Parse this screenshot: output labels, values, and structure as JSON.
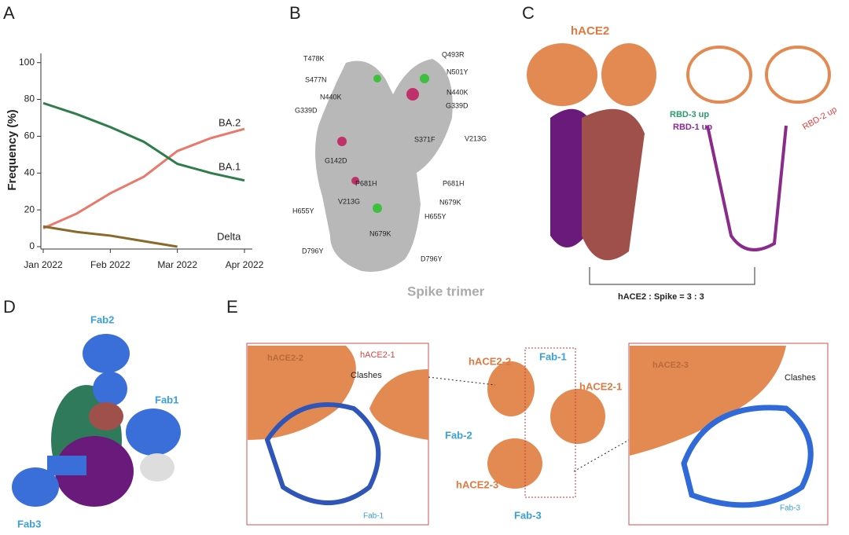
{
  "panels": {
    "letters": [
      "A",
      "B",
      "C",
      "D",
      "E"
    ]
  },
  "chart_data": {
    "type": "line",
    "y_label": "Frequency (%)",
    "x": [
      0,
      0.5,
      1,
      1.5,
      2,
      2.5,
      3
    ],
    "xlim": [
      0,
      3
    ],
    "xticks": [
      {
        "value": 0,
        "label": "Jan 2022"
      },
      {
        "value": 1,
        "label": "Feb 2022"
      },
      {
        "value": 2,
        "label": "Mar 2022"
      },
      {
        "value": 3,
        "label": "Apr 2022"
      }
    ],
    "ylim": [
      0,
      105
    ],
    "yticks": [
      0,
      20,
      40,
      60,
      80,
      100
    ],
    "series": [
      {
        "name": "BA.2",
        "color": "#e8796b",
        "values": [
          10,
          18,
          29,
          38,
          52,
          59,
          64
        ]
      },
      {
        "name": "BA.1",
        "color": "#2e7d4a",
        "values": [
          78,
          72,
          65,
          57,
          45,
          40,
          36
        ]
      },
      {
        "name": "Delta",
        "color": "#8a6a2a",
        "values": [
          11,
          8,
          6,
          3,
          0,
          null,
          null
        ]
      }
    ]
  },
  "panel_b": {
    "caption": "Spike trimer",
    "labels": [
      "T478K",
      "S477N",
      "N440K",
      "G339D",
      "G142D",
      "V213G",
      "P681H",
      "H655Y",
      "N679K",
      "D796Y",
      "Q493R",
      "N501Y",
      "N440K",
      "G339D",
      "S371F",
      "V213G",
      "P681H",
      "N679K",
      "H655Y",
      "D796Y"
    ]
  },
  "panel_c": {
    "hace2": "hACE2",
    "rbd3": "RBD-3 up",
    "rbd1": "RBD-1 up",
    "rbd2": "RBD-2 up",
    "ratio": "hACE2 : Spike = 3 : 3"
  },
  "panel_d": {
    "fab2": "Fab2",
    "fab1": "Fab1",
    "fab3": "Fab3"
  },
  "panel_e": {
    "left": [
      "hACE2-2",
      "hACE2-1",
      "Clashes",
      "Fab-1"
    ],
    "center": [
      "hACE2-2",
      "Fab-1",
      "hACE2-1",
      "Fab-2",
      "hACE2-3",
      "Fab-3"
    ],
    "right": [
      "hACE2-3",
      "Clashes",
      "Fab-3"
    ]
  }
}
